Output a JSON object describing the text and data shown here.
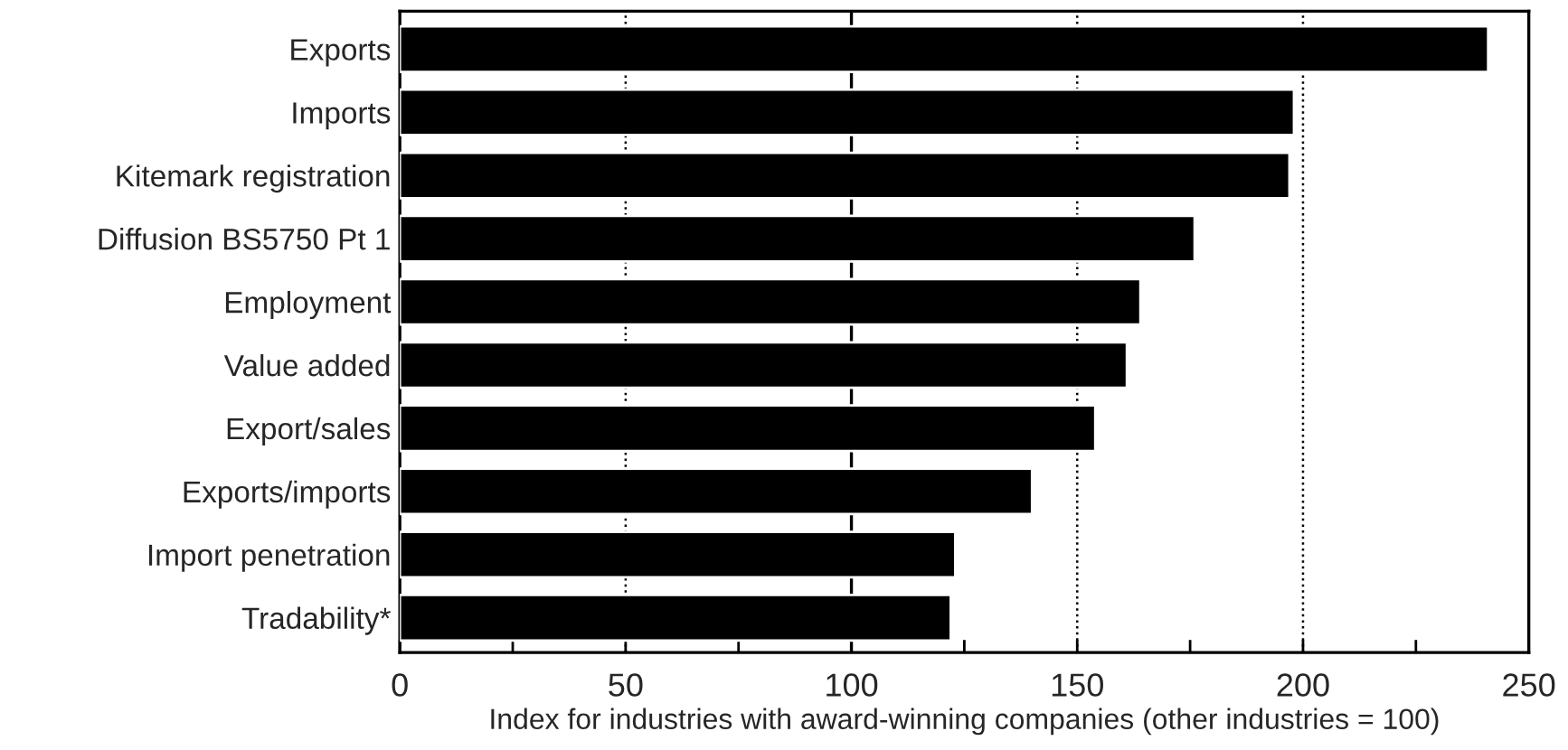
{
  "chart_data": {
    "type": "bar",
    "orientation": "horizontal",
    "xlabel": "Index for industries with award-winning companies (other industries = 100)",
    "categories": [
      "Exports",
      "Imports",
      "Kitemark registration",
      "Diffusion BS5750 Pt 1",
      "Employment",
      "Value added",
      "Export/sales",
      "Exports/imports",
      "Import penetration",
      "Tradability*"
    ],
    "series": [
      {
        "color": "#000000",
        "values": [
          241,
          198,
          197,
          176,
          164,
          161,
          154,
          140,
          123,
          122
        ]
      }
    ],
    "xlim": [
      0,
      250
    ],
    "xticks": [
      0,
      {
        "value": 25,
        "label": null
      },
      50,
      {
        "value": 75,
        "label": null
      },
      100,
      {
        "value": 125,
        "label": null
      },
      150,
      {
        "value": 175,
        "label": null
      },
      200,
      {
        "value": 225,
        "label": null
      },
      250
    ],
    "grid": "x",
    "line_style": "dotted",
    "ref_lines": [
      {
        "axis": "x",
        "value": 100,
        "color": "#000000",
        "line_style": "solid"
      }
    ]
  }
}
